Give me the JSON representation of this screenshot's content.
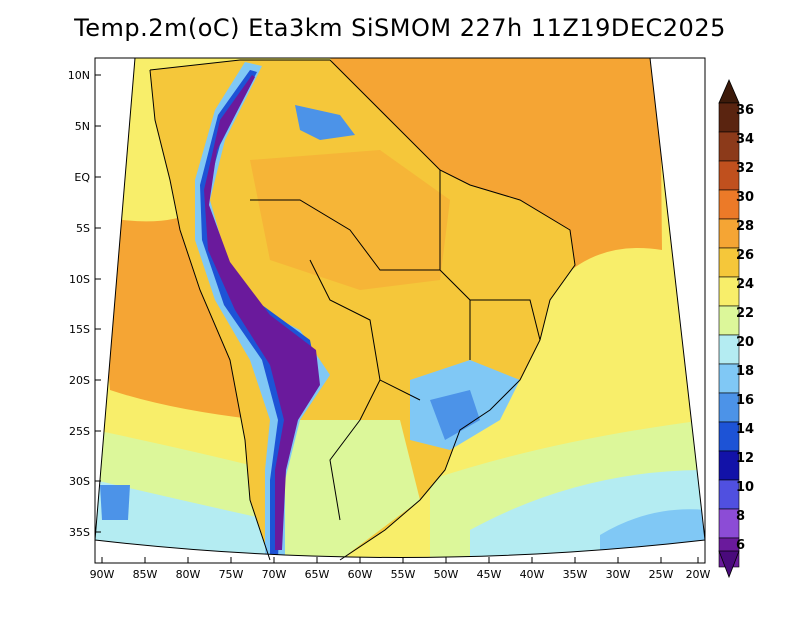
{
  "title": "Temp.2m(oC) Eta3km SiSMOM 227h 11Z19DEC2025",
  "lat_labels": [
    "10N",
    "5N",
    "EQ",
    "5S",
    "10S",
    "15S",
    "20S",
    "25S",
    "30S",
    "35S"
  ],
  "lon_labels": [
    "90W",
    "85W",
    "80W",
    "75W",
    "70W",
    "65W",
    "60W",
    "55W",
    "50W",
    "45W",
    "40W",
    "35W",
    "30W",
    "25W",
    "20W"
  ],
  "colorbar": {
    "labels": [
      "36",
      "34",
      "32",
      "30",
      "28",
      "26",
      "24",
      "22",
      "20",
      "18",
      "16",
      "14",
      "12",
      "10",
      "8",
      "6"
    ],
    "colors": [
      "#5a2410",
      "#8c3a1a",
      "#c0501e",
      "#ec7a28",
      "#f5a534",
      "#f5c73a",
      "#f8ee6a",
      "#dcf79a",
      "#b4ecf2",
      "#80c8f5",
      "#4c93e8",
      "#1d53d6",
      "#1212a8",
      "#5050e0",
      "#8c4cd6",
      "#6a1a9c"
    ],
    "top_arrow_color": "#3c1a0a",
    "bottom_arrow_color": "#4a0a7c"
  },
  "palette": {
    "ocean_warm": "#f5a534",
    "ocean_mild": "#f8ee6a",
    "ocean_cool": "#dcf79a",
    "ocean_cold": "#b4ecf2",
    "land": "#f5c73a",
    "andes": "#6a1a9c"
  }
}
